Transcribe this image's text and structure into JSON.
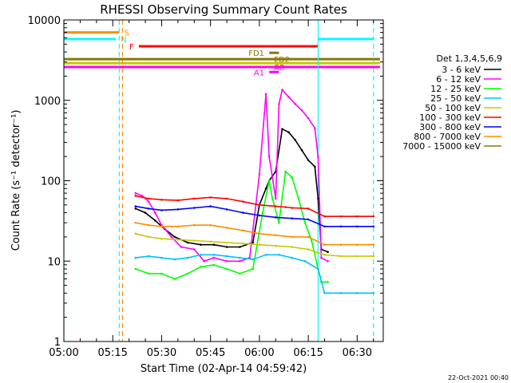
{
  "chart_data": {
    "type": "line",
    "title": "RHESSI Observing Summary Count Rates",
    "xlabel": "Start Time (02-Apr-14 04:59:42)",
    "ylabel": "Count Rate (s⁻¹ detector⁻¹)",
    "y_scale": "log",
    "ylim": [
      1,
      10000
    ],
    "y_ticks": [
      {
        "v": 1,
        "label": "1"
      },
      {
        "v": 10,
        "label": "10"
      },
      {
        "v": 100,
        "label": "100"
      },
      {
        "v": 1000,
        "label": "1000"
      },
      {
        "v": 10000,
        "label": "10000"
      }
    ],
    "xlim": [
      "05:00",
      "06:38"
    ],
    "x_ticks": [
      "05:00",
      "05:15",
      "05:30",
      "05:45",
      "06:00",
      "06:15",
      "06:30"
    ],
    "legend_title": "Det 1,3,4,5,6,9",
    "legend_position": "right",
    "date_stamp": "22-Oct-2021 00:40",
    "series": [
      {
        "name": "3 - 6 keV",
        "color": "#000000",
        "points": [
          [
            "05:22",
            45
          ],
          [
            "05:25",
            40
          ],
          [
            "05:28",
            32
          ],
          [
            "05:31",
            25
          ],
          [
            "05:34",
            20
          ],
          [
            "05:38",
            17
          ],
          [
            "05:42",
            16
          ],
          [
            "05:46",
            16
          ],
          [
            "05:50",
            15
          ],
          [
            "05:54",
            15
          ],
          [
            "05:58",
            17
          ],
          [
            "06:00",
            50
          ],
          [
            "06:02",
            80
          ],
          [
            "06:03",
            100
          ],
          [
            "06:05",
            130
          ],
          [
            "06:07",
            440
          ],
          [
            "06:09",
            400
          ],
          [
            "06:11",
            320
          ],
          [
            "06:13",
            240
          ],
          [
            "06:15",
            180
          ],
          [
            "06:17",
            150
          ],
          [
            "06:18",
            60
          ],
          [
            "06:19",
            14
          ],
          [
            "06:21",
            13
          ]
        ]
      },
      {
        "name": "6 - 12 keV",
        "color": "#ff00ff",
        "points": [
          [
            "05:22",
            70
          ],
          [
            "05:24",
            65
          ],
          [
            "05:26",
            55
          ],
          [
            "05:28",
            40
          ],
          [
            "05:30",
            28
          ],
          [
            "05:33",
            20
          ],
          [
            "05:36",
            15
          ],
          [
            "05:40",
            14
          ],
          [
            "05:43",
            10
          ],
          [
            "05:46",
            11
          ],
          [
            "05:50",
            10
          ],
          [
            "05:54",
            10
          ],
          [
            "05:57",
            11
          ],
          [
            "06:00",
            120
          ],
          [
            "06:02",
            1200
          ],
          [
            "06:03",
            200
          ],
          [
            "06:05",
            60
          ],
          [
            "06:06",
            900
          ],
          [
            "06:07",
            1350
          ],
          [
            "06:09",
            1100
          ],
          [
            "06:11",
            900
          ],
          [
            "06:13",
            750
          ],
          [
            "06:15",
            600
          ],
          [
            "06:17",
            450
          ],
          [
            "06:18",
            200
          ],
          [
            "06:19",
            11
          ],
          [
            "06:21",
            10
          ]
        ]
      },
      {
        "name": "12 - 25 keV",
        "color": "#00ff00",
        "points": [
          [
            "05:22",
            8
          ],
          [
            "05:26",
            7
          ],
          [
            "05:30",
            7
          ],
          [
            "05:34",
            6
          ],
          [
            "05:38",
            7
          ],
          [
            "05:42",
            8.5
          ],
          [
            "05:46",
            9
          ],
          [
            "05:50",
            8
          ],
          [
            "05:54",
            7
          ],
          [
            "05:58",
            8
          ],
          [
            "06:01",
            40
          ],
          [
            "06:03",
            100
          ],
          [
            "06:04",
            60
          ],
          [
            "06:06",
            30
          ],
          [
            "06:08",
            130
          ],
          [
            "06:10",
            110
          ],
          [
            "06:12",
            60
          ],
          [
            "06:14",
            30
          ],
          [
            "06:16",
            18
          ],
          [
            "06:18",
            8
          ],
          [
            "06:19",
            5.5
          ],
          [
            "06:21",
            5.5
          ]
        ]
      },
      {
        "name": "25 - 50 keV",
        "color": "#00c0ff",
        "points": [
          [
            "05:22",
            11
          ],
          [
            "05:26",
            11.5
          ],
          [
            "05:30",
            11
          ],
          [
            "05:34",
            10.5
          ],
          [
            "05:38",
            11
          ],
          [
            "05:42",
            12
          ],
          [
            "05:46",
            12
          ],
          [
            "05:50",
            11.5
          ],
          [
            "05:54",
            11
          ],
          [
            "05:58",
            10.5
          ],
          [
            "06:02",
            12
          ],
          [
            "06:06",
            12
          ],
          [
            "06:10",
            11
          ],
          [
            "06:14",
            10
          ],
          [
            "06:18",
            8
          ],
          [
            "06:20",
            4
          ],
          [
            "06:25",
            4
          ],
          [
            "06:30",
            4
          ],
          [
            "06:35",
            4
          ]
        ]
      },
      {
        "name": "50 - 100 keV",
        "color": "#c8c800",
        "points": [
          [
            "05:22",
            22
          ],
          [
            "05:26",
            20
          ],
          [
            "05:30",
            19
          ],
          [
            "05:35",
            18.5
          ],
          [
            "05:40",
            18
          ],
          [
            "05:45",
            17.5
          ],
          [
            "05:50",
            17
          ],
          [
            "05:55",
            16.5
          ],
          [
            "06:00",
            16
          ],
          [
            "06:05",
            15.5
          ],
          [
            "06:10",
            15
          ],
          [
            "06:15",
            14
          ],
          [
            "06:20",
            12
          ],
          [
            "06:25",
            11.5
          ],
          [
            "06:30",
            11.5
          ],
          [
            "06:35",
            11.5
          ]
        ]
      },
      {
        "name": "100 - 300 keV",
        "color": "#ff0000",
        "points": [
          [
            "05:22",
            65
          ],
          [
            "05:26",
            60
          ],
          [
            "05:30",
            58
          ],
          [
            "05:35",
            57
          ],
          [
            "05:40",
            60
          ],
          [
            "05:45",
            62
          ],
          [
            "05:50",
            60
          ],
          [
            "05:55",
            55
          ],
          [
            "06:00",
            50
          ],
          [
            "06:05",
            48
          ],
          [
            "06:08",
            47
          ],
          [
            "06:10",
            46
          ],
          [
            "06:15",
            45
          ],
          [
            "06:20",
            36
          ],
          [
            "06:25",
            36
          ],
          [
            "06:30",
            36
          ],
          [
            "06:35",
            36
          ]
        ]
      },
      {
        "name": "300 - 800 keV",
        "color": "#0000ff",
        "points": [
          [
            "05:22",
            48
          ],
          [
            "05:26",
            45
          ],
          [
            "05:30",
            43
          ],
          [
            "05:35",
            44
          ],
          [
            "05:40",
            46
          ],
          [
            "05:45",
            48
          ],
          [
            "05:50",
            44
          ],
          [
            "05:55",
            40
          ],
          [
            "06:00",
            37
          ],
          [
            "06:05",
            35
          ],
          [
            "06:10",
            34
          ],
          [
            "06:15",
            33
          ],
          [
            "06:20",
            27
          ],
          [
            "06:25",
            27
          ],
          [
            "06:30",
            27
          ],
          [
            "06:35",
            27
          ]
        ]
      },
      {
        "name": "800 - 7000 keV",
        "color": "#ff8c00",
        "points": [
          [
            "05:22",
            30
          ],
          [
            "05:26",
            28
          ],
          [
            "05:30",
            27
          ],
          [
            "05:35",
            27
          ],
          [
            "05:40",
            28
          ],
          [
            "05:45",
            28
          ],
          [
            "05:50",
            26
          ],
          [
            "05:55",
            24
          ],
          [
            "06:00",
            22
          ],
          [
            "06:05",
            21
          ],
          [
            "06:10",
            20
          ],
          [
            "06:15",
            20
          ],
          [
            "06:20",
            16
          ],
          [
            "06:25",
            16
          ],
          [
            "06:30",
            16
          ],
          [
            "06:35",
            16
          ]
        ]
      },
      {
        "name": "7000 - 15000 keV",
        "color": "#8b7500",
        "points": []
      }
    ],
    "flags": [
      {
        "label": "S",
        "color": "#ff8c00",
        "y": 7000,
        "segments": [
          [
            "05:00",
            "05:17"
          ]
        ],
        "label_at": "05:18",
        "label_side": "right"
      },
      {
        "label": "N",
        "color": "#00ffff",
        "y": 5800,
        "segments": [
          [
            "05:00",
            "05:16"
          ],
          [
            "06:18",
            "06:35"
          ]
        ],
        "label_at": "05:17",
        "label_side": "right"
      },
      {
        "label": "F",
        "color": "#ff0000",
        "y": 4700,
        "segments": [
          [
            "05:23",
            "06:18"
          ]
        ],
        "label_at": "05:22",
        "label_side": "left"
      },
      {
        "label": "FD1",
        "color": "#8b7500",
        "y": 3900,
        "segments": [
          [
            "06:03",
            "06:06"
          ]
        ],
        "label_at": "06:02",
        "label_side": "left"
      },
      {
        "label": "FD2",
        "color": "#8b7500",
        "y": 3250,
        "segments": [
          [
            "05:00",
            "06:37"
          ]
        ],
        "label_at": "06:04",
        "label_side": "right"
      },
      {
        "label": "AC",
        "color": "#c8c800",
        "y": 2900,
        "segments": [
          [
            "05:00",
            "06:37"
          ]
        ],
        "label_at": "06:04",
        "label_side": "right"
      },
      {
        "label": "A0",
        "color": "#ff00ff",
        "y": 2600,
        "segments": [
          [
            "05:00",
            "06:37"
          ]
        ],
        "label_at": "06:04",
        "label_side": "right"
      },
      {
        "label": "A1",
        "color": "#ff00ff",
        "y": 2250,
        "segments": [
          [
            "06:03",
            "06:06"
          ]
        ],
        "label_at": "06:02",
        "label_side": "left"
      }
    ],
    "vlines": [
      {
        "t": "05:00",
        "color": "#00ffff",
        "style": "solid"
      },
      {
        "t": "05:17",
        "color": "#00ffff",
        "style": "dashed"
      },
      {
        "t": "05:18",
        "color": "#ff8c00",
        "style": "dashed"
      },
      {
        "t": "06:18",
        "color": "#00ffff",
        "style": "solid"
      },
      {
        "t": "06:35",
        "color": "#00ffff",
        "style": "dashed"
      }
    ]
  }
}
